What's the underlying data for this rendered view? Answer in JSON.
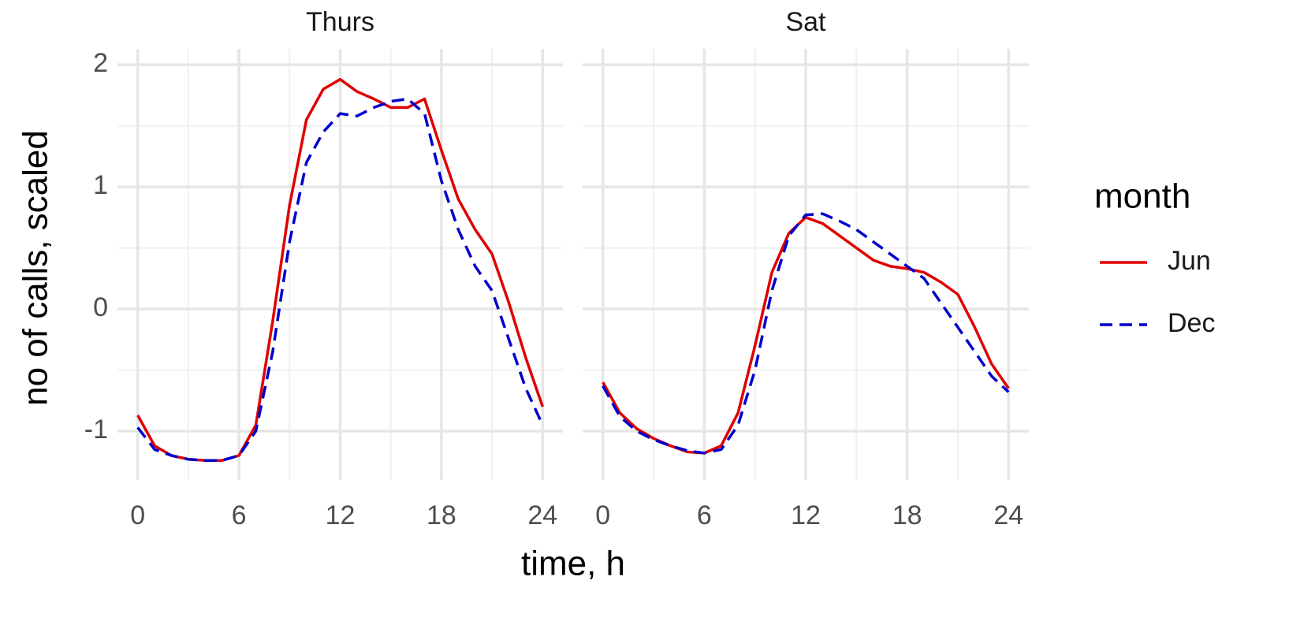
{
  "x_label": "time, h",
  "y_label": "no of calls, scaled",
  "legend_title": "month",
  "chart_data": [
    {
      "type": "line",
      "title": "Thurs",
      "x": [
        0,
        1,
        2,
        3,
        4,
        5,
        6,
        7,
        8,
        9,
        10,
        11,
        12,
        13,
        14,
        15,
        16,
        17,
        18,
        19,
        20,
        21,
        22,
        23,
        24
      ],
      "series": [
        {
          "name": "Jun",
          "color": "#e00000",
          "linestyle": "solid",
          "values": [
            -0.87,
            -1.12,
            -1.2,
            -1.23,
            -1.24,
            -1.24,
            -1.2,
            -0.95,
            -0.1,
            0.85,
            1.55,
            1.8,
            1.88,
            1.78,
            1.72,
            1.65,
            1.65,
            1.72,
            1.3,
            0.9,
            0.65,
            0.45,
            0.05,
            -0.4,
            -0.8
          ]
        },
        {
          "name": "Dec",
          "color": "#0000cc",
          "linestyle": "dashed",
          "values": [
            -0.97,
            -1.15,
            -1.2,
            -1.23,
            -1.24,
            -1.24,
            -1.2,
            -1.0,
            -0.35,
            0.55,
            1.2,
            1.45,
            1.6,
            1.58,
            1.65,
            1.7,
            1.72,
            1.6,
            1.05,
            0.65,
            0.35,
            0.15,
            -0.25,
            -0.65,
            -0.95
          ]
        }
      ],
      "xlim": [
        -1.2,
        25.2
      ],
      "xticks": [
        0,
        6,
        12,
        18,
        24
      ],
      "ylim": [
        -1.4,
        2.13
      ],
      "yticks": [
        -1,
        0,
        1,
        2
      ],
      "grid": true
    },
    {
      "type": "line",
      "title": "Sat",
      "x": [
        0,
        1,
        2,
        3,
        4,
        5,
        6,
        7,
        8,
        9,
        10,
        11,
        12,
        13,
        14,
        15,
        16,
        17,
        18,
        19,
        20,
        21,
        22,
        23,
        24
      ],
      "series": [
        {
          "name": "Jun",
          "color": "#e00000",
          "linestyle": "solid",
          "values": [
            -0.6,
            -0.85,
            -0.98,
            -1.06,
            -1.12,
            -1.17,
            -1.18,
            -1.12,
            -0.85,
            -0.3,
            0.3,
            0.62,
            0.75,
            0.7,
            0.6,
            0.5,
            0.4,
            0.35,
            0.33,
            0.3,
            0.22,
            0.12,
            -0.15,
            -0.45,
            -0.65
          ]
        },
        {
          "name": "Dec",
          "color": "#0000cc",
          "linestyle": "dashed",
          "values": [
            -0.63,
            -0.88,
            -1.0,
            -1.07,
            -1.12,
            -1.16,
            -1.18,
            -1.15,
            -0.95,
            -0.5,
            0.15,
            0.6,
            0.77,
            0.78,
            0.72,
            0.65,
            0.55,
            0.45,
            0.35,
            0.25,
            0.05,
            -0.15,
            -0.35,
            -0.55,
            -0.68
          ]
        }
      ],
      "xlim": [
        -1.2,
        25.2
      ],
      "xticks": [
        0,
        6,
        12,
        18,
        24
      ],
      "ylim": [
        -1.4,
        2.13
      ],
      "yticks": [
        -1,
        0,
        1,
        2
      ],
      "grid": true
    }
  ]
}
